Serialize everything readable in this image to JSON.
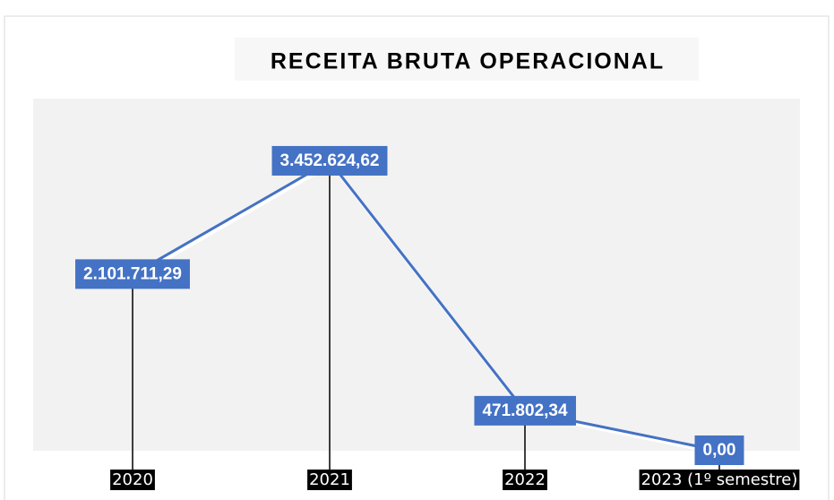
{
  "chart_data": {
    "type": "line",
    "title": "RECEITA BRUTA OPERACIONAL",
    "categories": [
      "2020",
      "2021",
      "2022",
      "2023 (1º semestre)"
    ],
    "values": [
      2101711.29,
      3452624.62,
      471802.34,
      0
    ],
    "value_labels": [
      "2.101.711,29",
      "3.452.624,62",
      "471.802,34",
      "0,00"
    ],
    "color": "#4472c4",
    "ylim": [
      0,
      4200000
    ]
  }
}
